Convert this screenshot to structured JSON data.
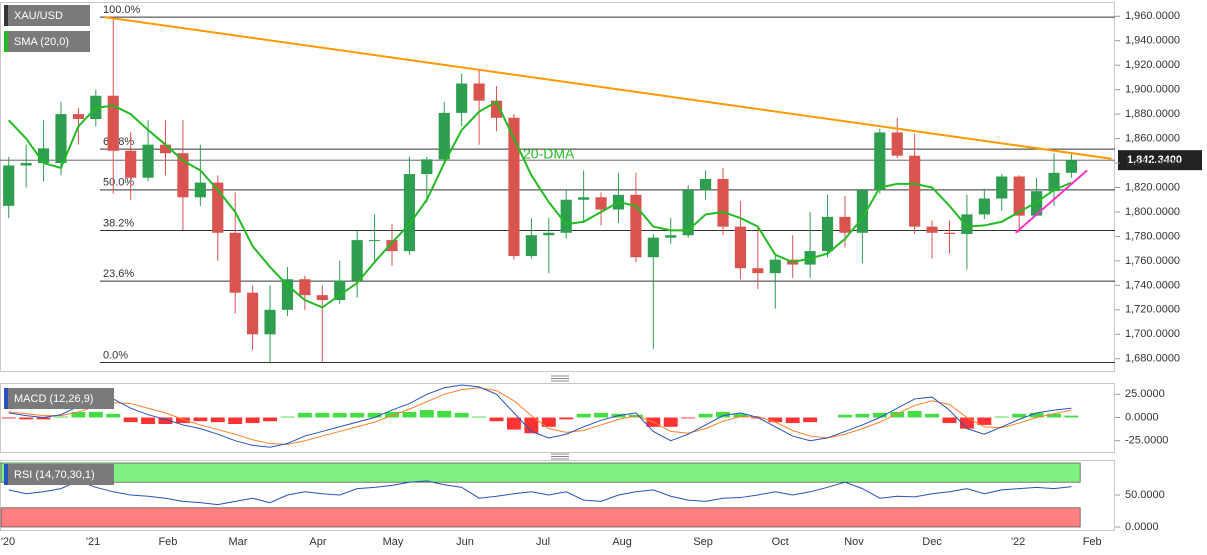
{
  "chart_data": [
    {
      "type": "candlestick",
      "name": "XAU/USD",
      "sma_label": "SMA (20,0)",
      "annotation": "20-DMA",
      "categories": [
        null,
        null,
        null,
        null,
        null,
        null,
        null,
        null,
        null,
        null,
        null,
        null,
        null,
        null,
        null,
        null,
        null,
        null,
        null,
        null,
        null,
        null,
        null,
        null,
        null,
        null,
        null,
        null,
        null,
        null,
        null,
        null,
        null,
        null,
        null,
        null,
        null,
        null,
        null,
        null,
        null,
        null,
        null,
        null,
        null,
        null,
        null,
        null,
        null,
        null,
        null,
        null,
        null,
        null,
        null,
        null,
        null,
        null,
        null,
        null,
        null,
        null
      ],
      "open": [
        1805,
        1838,
        1840,
        1840,
        1880,
        1876,
        1895,
        1850,
        1828,
        1855,
        1848,
        1812,
        1824,
        1783,
        1734,
        1700,
        1720,
        1745,
        1732,
        1728,
        1744,
        1777,
        1777,
        1768,
        1831,
        1843,
        1881,
        1905,
        1891,
        1877,
        1764,
        1781,
        1783,
        1810,
        1812,
        1802,
        1814,
        1763,
        1779,
        1781,
        1818,
        1827,
        1788,
        1754,
        1750,
        1761,
        1757,
        1768,
        1796,
        1783,
        1818,
        1865,
        1846,
        1788,
        1783,
        1782,
        1798,
        1811,
        1829,
        1797,
        1817,
        1832
      ],
      "high": [
        1845,
        1855,
        1875,
        1890,
        1885,
        1900,
        1959,
        1865,
        1875,
        1875,
        1875,
        1855,
        1830,
        1816,
        1740,
        1740,
        1755,
        1748,
        1740,
        1760,
        1785,
        1798,
        1790,
        1845,
        1845,
        1890,
        1913,
        1916,
        1903,
        1880,
        1795,
        1795,
        1818,
        1834,
        1816,
        1832,
        1832,
        1782,
        1795,
        1822,
        1834,
        1836,
        1809,
        1788,
        1764,
        1781,
        1800,
        1814,
        1813,
        1818,
        1868,
        1877,
        1864,
        1793,
        1793,
        1814,
        1819,
        1831,
        1830,
        1828,
        1848,
        1848
      ],
      "low": [
        1795,
        1820,
        1825,
        1830,
        1855,
        1870,
        1815,
        1810,
        1825,
        1830,
        1785,
        1805,
        1760,
        1717,
        1687,
        1676,
        1715,
        1720,
        1677,
        1725,
        1730,
        1760,
        1756,
        1765,
        1808,
        1840,
        1870,
        1855,
        1866,
        1761,
        1762,
        1750,
        1778,
        1791,
        1789,
        1791,
        1759,
        1688,
        1774,
        1779,
        1810,
        1781,
        1745,
        1737,
        1721,
        1746,
        1746,
        1763,
        1771,
        1758,
        1815,
        1844,
        1782,
        1762,
        1766,
        1753,
        1794,
        1801,
        1783,
        1797,
        1805,
        1828
      ],
      "close": [
        1838,
        1840,
        1852,
        1880,
        1876,
        1895,
        1850,
        1828,
        1855,
        1848,
        1812,
        1824,
        1783,
        1734,
        1700,
        1720,
        1745,
        1732,
        1728,
        1744,
        1777,
        1777,
        1768,
        1831,
        1843,
        1881,
        1905,
        1891,
        1877,
        1764,
        1781,
        1783,
        1810,
        1812,
        1802,
        1814,
        1763,
        1779,
        1781,
        1818,
        1827,
        1788,
        1754,
        1750,
        1761,
        1757,
        1768,
        1796,
        1783,
        1818,
        1865,
        1846,
        1788,
        1783,
        1782,
        1798,
        1811,
        1829,
        1797,
        1817,
        1832,
        1842.34
      ],
      "up_color": "#2e9e4f",
      "down_color": "#d9534f",
      "sma": {
        "color": "#22bb22",
        "values": [
          1875,
          1860,
          1840,
          1836,
          1870,
          1885,
          1887,
          1880,
          1867,
          1855,
          1842,
          1834,
          1818,
          1800,
          1772,
          1755,
          1740,
          1728,
          1722,
          1732,
          1742,
          1759,
          1775,
          1790,
          1810,
          1840,
          1867,
          1882,
          1890,
          1860,
          1830,
          1808,
          1790,
          1792,
          1800,
          1808,
          1805,
          1788,
          1785,
          1785,
          1798,
          1800,
          1795,
          1788,
          1765,
          1759,
          1762,
          1766,
          1778,
          1795,
          1820,
          1823,
          1823,
          1820,
          1805,
          1788,
          1789,
          1792,
          1800,
          1808,
          1818,
          1824
        ]
      },
      "trendlines": [
        {
          "color": "#ff9900",
          "x": [
            5.5,
            63.3
          ],
          "y": [
            1959.3,
            1843.5
          ]
        },
        {
          "color": "#ff33cc",
          "x": [
            57.8,
            61.9
          ],
          "y": [
            1783,
            1834
          ]
        }
      ],
      "fib_levels": [
        {
          "label": "100.0%",
          "value": 1959.3
        },
        {
          "label": "61.8%",
          "value": 1851.4
        },
        {
          "label": "50.0%",
          "value": 1818.1
        },
        {
          "label": "38.2%",
          "value": 1784.8
        },
        {
          "label": "23.6%",
          "value": 1743.5
        },
        {
          "label": "0.0%",
          "value": 1676.9
        }
      ],
      "last_price": {
        "value": 1842.34,
        "label": "1,842.3400"
      },
      "xlim": [
        -0.5,
        63.5
      ],
      "ylim": [
        1670,
        1970
      ],
      "yticks": [
        {
          "value": 1680,
          "label": "1,680.0000"
        },
        {
          "value": 1700,
          "label": "1,700.0000"
        },
        {
          "value": 1720,
          "label": "1,720.0000"
        },
        {
          "value": 1740,
          "label": "1,740.0000"
        },
        {
          "value": 1760,
          "label": "1,760.0000"
        },
        {
          "value": 1780,
          "label": "1,780.0000"
        },
        {
          "value": 1800,
          "label": "1,800.0000"
        },
        {
          "value": 1820,
          "label": "1,820.0000"
        },
        {
          "value": 1840,
          "label": "1,840.0000"
        },
        {
          "value": 1860,
          "label": "1,860.0000"
        },
        {
          "value": 1880,
          "label": "1,880.0000"
        },
        {
          "value": 1900,
          "label": "1,900.0000"
        },
        {
          "value": 1920,
          "label": "1,920.0000"
        },
        {
          "value": 1940,
          "label": "1,940.0000"
        },
        {
          "value": 1960,
          "label": "1,960.0000"
        }
      ]
    },
    {
      "type": "macd",
      "title": "MACD (12,26,9)",
      "macd": {
        "color": "#2a52be",
        "values": [
          5,
          2,
          0,
          3,
          12,
          18,
          20,
          10,
          3,
          -2,
          -8,
          -12,
          -18,
          -25,
          -30,
          -32,
          -28,
          -20,
          -15,
          -10,
          -5,
          0,
          8,
          15,
          25,
          32,
          35,
          33,
          25,
          5,
          -15,
          -22,
          -18,
          -10,
          -3,
          2,
          5,
          -15,
          -25,
          -18,
          -8,
          2,
          5,
          0,
          -10,
          -20,
          -25,
          -22,
          -15,
          -8,
          0,
          10,
          20,
          22,
          8,
          -12,
          -18,
          -10,
          -2,
          5,
          8,
          10
        ]
      },
      "signal": {
        "color": "#ff7f27",
        "values": [
          6,
          4,
          2,
          2,
          6,
          12,
          16,
          15,
          10,
          5,
          -2,
          -8,
          -13,
          -18,
          -24,
          -28,
          -29,
          -25,
          -20,
          -15,
          -10,
          -5,
          2,
          9,
          17,
          25,
          30,
          32,
          29,
          18,
          2,
          -12,
          -16,
          -14,
          -8,
          -2,
          2,
          -5,
          -15,
          -17,
          -12,
          -4,
          1,
          1,
          -5,
          -14,
          -20,
          -22,
          -18,
          -12,
          -5,
          4,
          13,
          18,
          14,
          0,
          -10,
          -11,
          -6,
          0,
          4,
          8
        ]
      },
      "histogram": {
        "up_color": "#44dd44",
        "down_color": "#ff3333",
        "values": [
          -1,
          -2,
          -2,
          1,
          6,
          6,
          4,
          -5,
          -7,
          -7,
          -6,
          -4,
          -5,
          -7,
          -6,
          -4,
          1,
          5,
          5,
          5,
          5,
          5,
          6,
          6,
          8,
          7,
          5,
          1,
          -4,
          -13,
          -17,
          -10,
          -2,
          4,
          5,
          4,
          3,
          -10,
          -10,
          -1,
          4,
          6,
          4,
          -1,
          -5,
          -6,
          -5,
          0,
          3,
          4,
          5,
          6,
          7,
          4,
          -6,
          -12,
          -8,
          1,
          4,
          5,
          4,
          2
        ]
      },
      "ylim": [
        -35,
        35
      ],
      "yticks": [
        {
          "value": 25,
          "label": "25.0000"
        },
        {
          "value": 0,
          "label": "0.0000"
        },
        {
          "value": -25,
          "label": "-25.0000"
        }
      ]
    },
    {
      "type": "line",
      "title": "RSI (14,70,30,1)",
      "color": "#2a52be",
      "values": [
        58,
        52,
        55,
        60,
        72,
        62,
        55,
        50,
        48,
        45,
        40,
        38,
        35,
        40,
        45,
        38,
        50,
        55,
        52,
        50,
        60,
        62,
        65,
        70,
        72,
        66,
        62,
        45,
        48,
        52,
        55,
        50,
        55,
        42,
        40,
        50,
        55,
        58,
        48,
        42,
        40,
        45,
        46,
        50,
        55,
        50,
        55,
        62,
        70,
        60,
        45,
        48,
        47,
        52,
        55,
        60,
        52,
        58,
        60,
        62,
        60,
        63
      ],
      "bands": [
        {
          "from": 70,
          "to": 100,
          "color": "#80f080"
        },
        {
          "from": 0,
          "to": 30,
          "color": "#ff8080"
        }
      ],
      "ylim": [
        0,
        100
      ],
      "yticks": [
        {
          "value": 50,
          "label": "50.0000"
        },
        {
          "value": 0,
          "label": "0.0000"
        }
      ],
      "xticks": [
        {
          "value": -0.04,
          "label": "'20"
        },
        {
          "value": 4.84,
          "label": "'21"
        },
        {
          "value": 9.14,
          "label": "Feb"
        },
        {
          "value": 13.16,
          "label": "Mar"
        },
        {
          "value": 17.75,
          "label": "Apr"
        },
        {
          "value": 22.06,
          "label": "May"
        },
        {
          "value": 26.19,
          "label": "Jun"
        },
        {
          "value": 30.67,
          "label": "Jul"
        },
        {
          "value": 35.21,
          "label": "Aug"
        },
        {
          "value": 39.86,
          "label": "Sep"
        },
        {
          "value": 44.28,
          "label": "Oct"
        },
        {
          "value": 48.52,
          "label": "Nov"
        },
        {
          "value": 53.0,
          "label": "Dec"
        },
        {
          "value": 57.94,
          "label": "'22"
        },
        {
          "value": 62.19,
          "label": "Feb"
        }
      ]
    }
  ]
}
